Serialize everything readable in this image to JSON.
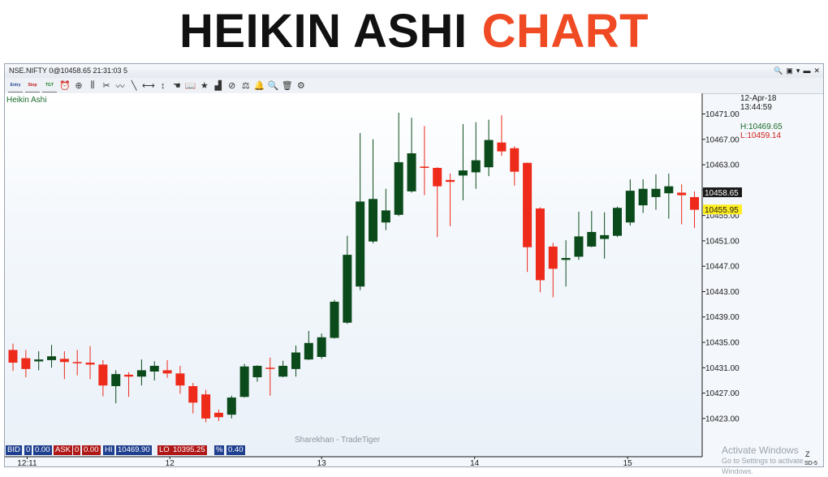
{
  "banner": {
    "title_black": "HEIKIN ASHI",
    "title_red": "CHART",
    "red_color": "#ef4a23"
  },
  "window": {
    "title": "NSE.NIFTY 0@10458.65 21:31:03 5",
    "controls": [
      "search-zoom-icon",
      "window-icon",
      "dropdown-icon",
      "minimize-icon",
      "close-icon"
    ]
  },
  "toolbar": {
    "items": [
      {
        "label": "Entry",
        "icon": "entry-icon"
      },
      {
        "label": "Stop",
        "icon": "stop-icon"
      },
      {
        "label": "TGT",
        "icon": "target-icon"
      },
      {
        "icon": "alarm-clock-icon"
      },
      {
        "icon": "crosshair-icon"
      },
      {
        "icon": "candlestick-type-icon"
      },
      {
        "icon": "scissors-lines-icon"
      },
      {
        "icon": "freehand-icon"
      },
      {
        "icon": "trendline-icon"
      },
      {
        "icon": "horizontal-line-icon"
      },
      {
        "icon": "vertical-line-icon"
      },
      {
        "icon": "pointer-hand-icon"
      },
      {
        "icon": "book-icon"
      },
      {
        "icon": "star-icon"
      },
      {
        "icon": "bar-chart-icon"
      },
      {
        "icon": "indicator-circle-icon"
      },
      {
        "icon": "scale-icon"
      },
      {
        "icon": "bell-icon"
      },
      {
        "icon": "magnifier-icon"
      },
      {
        "icon": "delete-icon"
      },
      {
        "icon": "settings-gear-icon"
      }
    ]
  },
  "chart_data": {
    "type": "candlestick",
    "chart_label": "Heikin Ashi",
    "watermark": "Sharekhan - TradeTiger",
    "y_ticks": [
      10471.0,
      10467.0,
      10463.0,
      10459.0,
      10455.0,
      10451.0,
      10447.0,
      10443.0,
      10439.0,
      10435.0,
      10431.0,
      10427.0,
      10423.0
    ],
    "ylim": [
      10421.5,
      10474.5
    ],
    "x_tick_labels": [
      {
        "index": 1.1,
        "label": "12:11"
      },
      {
        "index": 12.2,
        "label": "12"
      },
      {
        "index": 24.0,
        "label": "13"
      },
      {
        "index": 35.9,
        "label": "14"
      },
      {
        "index": 47.8,
        "label": "15"
      }
    ],
    "candles": [
      {
        "o": 10433.8,
        "c": 10431.8,
        "h": 10434.8,
        "l": 10430.5
      },
      {
        "o": 10432.5,
        "c": 10430.8,
        "h": 10433.8,
        "l": 10429.5
      },
      {
        "o": 10432.0,
        "c": 10432.3,
        "h": 10433.6,
        "l": 10430.6
      },
      {
        "o": 10432.2,
        "c": 10432.8,
        "h": 10434.6,
        "l": 10431.0
      },
      {
        "o": 10432.4,
        "c": 10431.9,
        "h": 10433.6,
        "l": 10429.2
      },
      {
        "o": 10431.9,
        "c": 10431.7,
        "h": 10433.8,
        "l": 10429.8
      },
      {
        "o": 10431.8,
        "c": 10431.5,
        "h": 10434.4,
        "l": 10429.2
      },
      {
        "o": 10431.5,
        "c": 10428.2,
        "h": 10432.2,
        "l": 10426.5
      },
      {
        "o": 10428.1,
        "c": 10430.0,
        "h": 10430.6,
        "l": 10425.4
      },
      {
        "o": 10429.9,
        "c": 10429.6,
        "h": 10430.3,
        "l": 10426.4
      },
      {
        "o": 10429.6,
        "c": 10430.6,
        "h": 10432.3,
        "l": 10428.2
      },
      {
        "o": 10430.4,
        "c": 10431.3,
        "h": 10432.0,
        "l": 10429.0
      },
      {
        "o": 10430.6,
        "c": 10430.1,
        "h": 10432.2,
        "l": 10429.4
      },
      {
        "o": 10430.1,
        "c": 10428.2,
        "h": 10431.3,
        "l": 10426.9
      },
      {
        "o": 10428.1,
        "c": 10425.5,
        "h": 10428.6,
        "l": 10423.8
      },
      {
        "o": 10426.8,
        "c": 10423.0,
        "h": 10427.5,
        "l": 10422.4
      },
      {
        "o": 10423.9,
        "c": 10423.2,
        "h": 10424.4,
        "l": 10422.6
      },
      {
        "o": 10423.6,
        "c": 10426.3,
        "h": 10426.6,
        "l": 10423.0
      },
      {
        "o": 10426.4,
        "c": 10431.2,
        "h": 10431.6,
        "l": 10426.3
      },
      {
        "o": 10429.5,
        "c": 10431.3,
        "h": 10431.4,
        "l": 10428.8
      },
      {
        "o": 10431.0,
        "c": 10430.9,
        "h": 10432.6,
        "l": 10426.6
      },
      {
        "o": 10429.6,
        "c": 10431.3,
        "h": 10432.1,
        "l": 10429.5
      },
      {
        "o": 10430.8,
        "c": 10433.4,
        "h": 10434.5,
        "l": 10429.6
      },
      {
        "o": 10432.3,
        "c": 10434.9,
        "h": 10436.8,
        "l": 10432.2
      },
      {
        "o": 10432.7,
        "c": 10435.8,
        "h": 10436.4,
        "l": 10432.4
      },
      {
        "o": 10435.7,
        "c": 10441.4,
        "h": 10441.7,
        "l": 10435.6
      },
      {
        "o": 10438.1,
        "c": 10448.8,
        "h": 10451.8,
        "l": 10437.9
      },
      {
        "o": 10443.8,
        "c": 10457.2,
        "h": 10468.0,
        "l": 10443.2
      },
      {
        "o": 10450.9,
        "c": 10457.6,
        "h": 10467.0,
        "l": 10450.6
      },
      {
        "o": 10453.9,
        "c": 10455.8,
        "h": 10459.2,
        "l": 10452.7
      },
      {
        "o": 10455.1,
        "c": 10463.4,
        "h": 10471.2,
        "l": 10454.9
      },
      {
        "o": 10458.8,
        "c": 10464.8,
        "h": 10470.4,
        "l": 10458.6
      },
      {
        "o": 10462.7,
        "c": 10462.5,
        "h": 10469.1,
        "l": 10458.2
      },
      {
        "o": 10462.5,
        "c": 10459.6,
        "h": 10462.6,
        "l": 10451.6
      },
      {
        "o": 10460.6,
        "c": 10460.3,
        "h": 10461.6,
        "l": 10453.3
      },
      {
        "o": 10461.3,
        "c": 10462.1,
        "h": 10469.4,
        "l": 10457.4
      },
      {
        "o": 10461.8,
        "c": 10463.7,
        "h": 10469.7,
        "l": 10459.2
      },
      {
        "o": 10462.6,
        "c": 10466.9,
        "h": 10470.1,
        "l": 10461.2
      },
      {
        "o": 10466.5,
        "c": 10465.1,
        "h": 10470.8,
        "l": 10464.4
      },
      {
        "o": 10465.6,
        "c": 10461.9,
        "h": 10465.9,
        "l": 10459.7
      },
      {
        "o": 10463.3,
        "c": 10450.0,
        "h": 10463.3,
        "l": 10446.1
      },
      {
        "o": 10456.1,
        "c": 10444.8,
        "h": 10456.3,
        "l": 10442.9
      },
      {
        "o": 10450.1,
        "c": 10446.6,
        "h": 10450.7,
        "l": 10442.1
      },
      {
        "o": 10448.0,
        "c": 10448.3,
        "h": 10451.1,
        "l": 10443.8
      },
      {
        "o": 10448.5,
        "c": 10451.7,
        "h": 10455.6,
        "l": 10448.0
      },
      {
        "o": 10450.1,
        "c": 10452.4,
        "h": 10455.7,
        "l": 10450.0
      },
      {
        "o": 10451.3,
        "c": 10451.9,
        "h": 10455.5,
        "l": 10448.2
      },
      {
        "o": 10451.8,
        "c": 10456.2,
        "h": 10456.4,
        "l": 10451.6
      },
      {
        "o": 10453.9,
        "c": 10458.9,
        "h": 10460.7,
        "l": 10453.4
      },
      {
        "o": 10456.6,
        "c": 10459.2,
        "h": 10460.7,
        "l": 10455.4
      },
      {
        "o": 10457.9,
        "c": 10459.2,
        "h": 10461.5,
        "l": 10455.9
      },
      {
        "o": 10458.5,
        "c": 10459.6,
        "h": 10461.6,
        "l": 10454.5
      },
      {
        "o": 10458.6,
        "c": 10458.2,
        "h": 10459.9,
        "l": 10453.6
      },
      {
        "o": 10457.9,
        "c": 10455.9,
        "h": 10458.8,
        "l": 10453.0
      }
    ],
    "colors": {
      "up": "#0b4a1a",
      "down": "#ee2a1b",
      "axis": "#1a1a1a"
    }
  },
  "info_panel": {
    "date": "12-Apr-18",
    "time": "13:44:59",
    "high": "H:10469.65",
    "low": "L:10459.14"
  },
  "price_tags": {
    "last": {
      "value": 10458.65,
      "label": "10458.65"
    },
    "current": {
      "value": 10455.95,
      "label": "10455.95"
    }
  },
  "quote_bar": {
    "bid_label": "BID",
    "bid_qty": "0",
    "bid_price": "0.00",
    "ask_label": "ASK",
    "ask_qty": "0",
    "ask_price": "0.00",
    "hi_label": "HI",
    "hi_value": "10469.90",
    "lo_label": "LO",
    "lo_value": "10395.25",
    "pct_label": "%",
    "pct_value": "0.40"
  },
  "corner_labels": {
    "z": "Z",
    "sd": "SD-5"
  },
  "os_watermark": {
    "line1": "Activate Windows",
    "line2": "Go to Settings to activate Windows."
  }
}
